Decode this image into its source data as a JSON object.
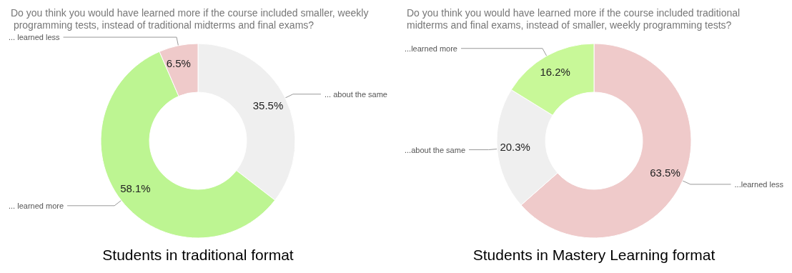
{
  "chart_data": [
    {
      "type": "donut",
      "title": "Do you think you would have learned more if the course included smaller, weekly programming tests, instead of traditional midterms and final exams?",
      "categories": [
        "... about the same",
        "... learned more",
        "... learned less"
      ],
      "values": [
        35.5,
        58.1,
        6.5
      ],
      "value_labels": [
        "35.5%",
        "58.1%",
        "6.5%"
      ],
      "colors": [
        "#efefef",
        "#bdf592",
        "#efcaca"
      ],
      "annotations": [
        "Students in traditional format"
      ]
    },
    {
      "type": "donut",
      "title": "Do you think you would have learned more if the course included traditional midterms and final exams, instead of smaller, weekly programming tests?",
      "categories": [
        "...learned less",
        "...about the same",
        "...learned more"
      ],
      "values": [
        63.5,
        20.3,
        16.2
      ],
      "value_labels": [
        "63.5%",
        "20.3%",
        "16.2%"
      ],
      "colors": [
        "#efcaca",
        "#efefef",
        "#c8f898"
      ],
      "annotations": [
        "Students in Mastery Learning format"
      ]
    }
  ]
}
